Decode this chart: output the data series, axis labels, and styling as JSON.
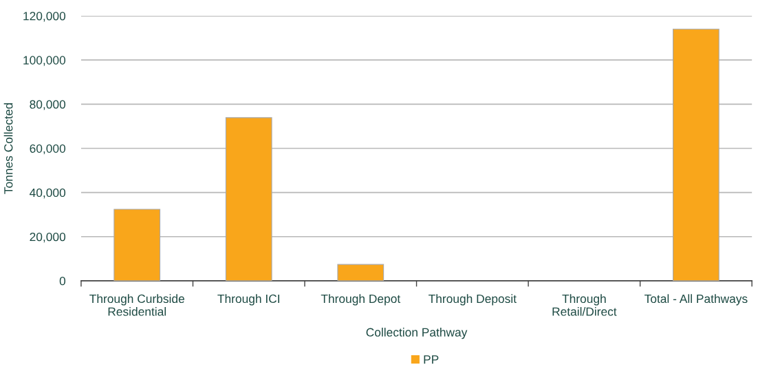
{
  "chart_data": {
    "type": "bar",
    "xlabel": "Collection Pathway",
    "ylabel": "Tonnes Collected",
    "categories": [
      "Through Curbside\nResidential",
      "Through ICI",
      "Through Depot",
      "Through Deposit",
      "Through\nRetail/Direct",
      "Total - All Pathways"
    ],
    "series": [
      {
        "name": "PP",
        "color": "#f9a61b",
        "values": [
          32400,
          73900,
          7400,
          0,
          0,
          114000
        ]
      }
    ],
    "ylim": [
      0,
      120000
    ],
    "yticks": [
      {
        "value": 0,
        "label": "0"
      },
      {
        "value": 20000,
        "label": "20,000"
      },
      {
        "value": 40000,
        "label": "40,000"
      },
      {
        "value": 60000,
        "label": "60,000"
      },
      {
        "value": 80000,
        "label": "80,000"
      },
      {
        "value": 100000,
        "label": "100,000"
      },
      {
        "value": 120000,
        "label": "120,000"
      }
    ],
    "grid": "y",
    "legend": "bottom"
  }
}
